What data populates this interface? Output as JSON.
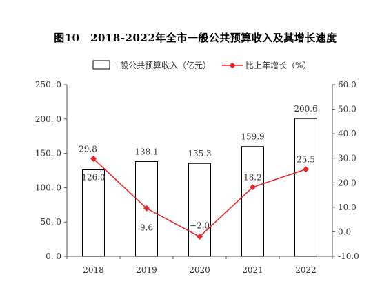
{
  "chart_data": {
    "type": "bar+line",
    "title": "图10　2018-2022年全市一般公共预算收入及其增长速度",
    "categories": [
      "2018",
      "2019",
      "2020",
      "2021",
      "2022"
    ],
    "series": [
      {
        "name": "一般公共预算收入（亿元）",
        "type": "bar",
        "axis": "left",
        "values": [
          126.0,
          138.1,
          135.3,
          159.9,
          200.6
        ],
        "labels": [
          "126.0",
          "138.1",
          "135.3",
          "159.9",
          "200.6"
        ]
      },
      {
        "name": "比上年增长（%）",
        "type": "line",
        "axis": "right",
        "color": "#e8262a",
        "values": [
          29.8,
          9.6,
          -2.0,
          18.2,
          25.5
        ],
        "labels": [
          "29.8",
          "9.6",
          "−2.0",
          "18.2",
          "25.5"
        ]
      }
    ],
    "y_left": {
      "min": 0,
      "max": 250,
      "ticks": [
        "0. 0",
        "50. 0",
        "100. 0",
        "150. 0",
        "200. 0",
        "250. 0"
      ]
    },
    "y_right": {
      "min": -10,
      "max": 60,
      "ticks": [
        "-10.0",
        "0.0",
        "10.0",
        "20.0",
        "30.0",
        "40.0",
        "50.0",
        "60.0"
      ]
    },
    "legend_position": "top-center",
    "grid": false
  }
}
